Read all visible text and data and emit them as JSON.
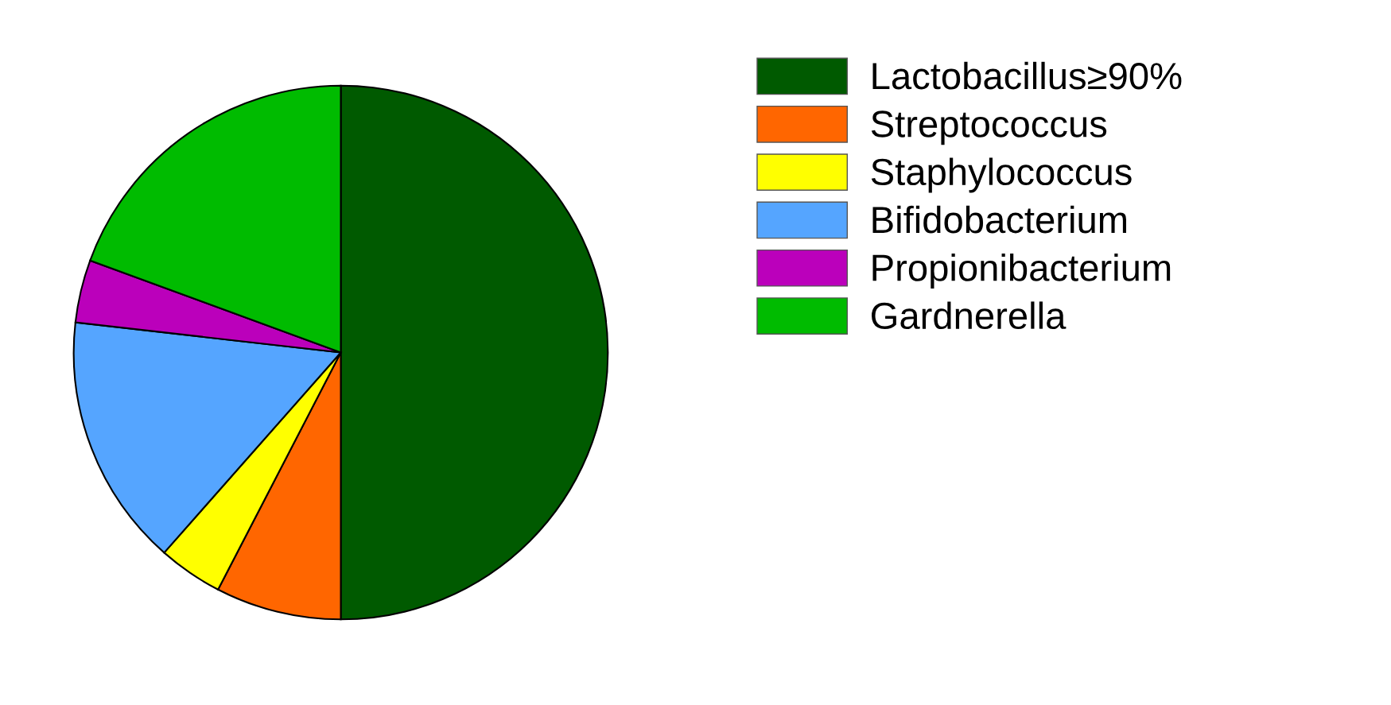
{
  "chart_data": {
    "type": "pie",
    "categories": [
      "Lactobacillus≥90%",
      "Streptococcus",
      "Staphylococcus",
      "Bifidobacterium",
      "Propionibacterium",
      "Gardnerella"
    ],
    "values": [
      50,
      7.6,
      3.9,
      15.3,
      3.8,
      19.4
    ],
    "colors": [
      "#005a00",
      "#ff6600",
      "#ffff00",
      "#55a5ff",
      "#bb00bb",
      "#00bb00"
    ],
    "legend": "right"
  }
}
